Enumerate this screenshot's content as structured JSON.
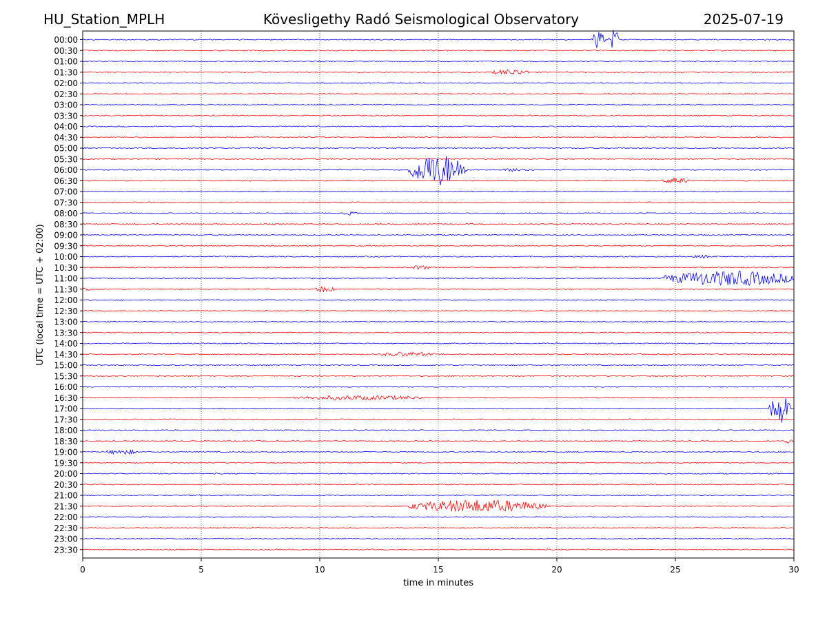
{
  "header": {
    "station": "HU_Station_MPLH",
    "observatory": "Kövesligethy Radó Seismological Observatory",
    "date": "2025-07-19"
  },
  "chart_data": {
    "type": "line",
    "title": "Kövesligethy Radó Seismological Observatory",
    "xlabel": "time in minutes",
    "ylabel": "UTC (local time = UTC + 02:00)",
    "xlim": [
      0,
      30
    ],
    "xticks": [
      "0",
      "5",
      "10",
      "15",
      "20",
      "25",
      "30"
    ],
    "grid": "vertical dotted at 5-minute intervals",
    "colors": [
      "#0000ff",
      "#ff0000"
    ],
    "rows": [
      "00:00",
      "00:30",
      "01:00",
      "01:30",
      "02:00",
      "02:30",
      "03:00",
      "03:30",
      "04:00",
      "04:30",
      "05:00",
      "05:30",
      "06:00",
      "06:30",
      "07:00",
      "07:30",
      "08:00",
      "08:30",
      "09:00",
      "09:30",
      "10:00",
      "10:30",
      "11:00",
      "11:30",
      "12:00",
      "12:30",
      "13:00",
      "13:30",
      "14:00",
      "14:30",
      "15:00",
      "15:30",
      "16:00",
      "16:30",
      "17:00",
      "17:30",
      "18:00",
      "18:30",
      "19:00",
      "19:30",
      "20:00",
      "20:30",
      "21:00",
      "21:30",
      "22:00",
      "22:30",
      "23:00",
      "23:30"
    ],
    "events": [
      {
        "row": "00:00",
        "start": 21.5,
        "end": 22.0,
        "amplitude": 1.5
      },
      {
        "row": "00:00",
        "start": 22.2,
        "end": 22.6,
        "amplitude": 1.8
      },
      {
        "row": "01:30",
        "start": 17.3,
        "end": 18.8,
        "amplitude": 0.4
      },
      {
        "row": "06:00",
        "start": 13.8,
        "end": 16.2,
        "amplitude": 2.6
      },
      {
        "row": "06:00",
        "start": 17.8,
        "end": 19.0,
        "amplitude": 0.25
      },
      {
        "row": "06:30",
        "start": 24.5,
        "end": 25.6,
        "amplitude": 0.4
      },
      {
        "row": "08:00",
        "start": 11.0,
        "end": 11.6,
        "amplitude": 0.25
      },
      {
        "row": "10:00",
        "start": 25.8,
        "end": 26.5,
        "amplitude": 0.2
      },
      {
        "row": "10:30",
        "start": 13.9,
        "end": 14.6,
        "amplitude": 0.3
      },
      {
        "row": "11:00",
        "start": 24.5,
        "end": 30.0,
        "amplitude": 1.2
      },
      {
        "row": "11:30",
        "start": 0.0,
        "end": 0.3,
        "amplitude": 0.4
      },
      {
        "row": "11:30",
        "start": 9.8,
        "end": 10.6,
        "amplitude": 0.45
      },
      {
        "row": "14:30",
        "start": 12.5,
        "end": 14.8,
        "amplitude": 0.3
      },
      {
        "row": "16:30",
        "start": 8.8,
        "end": 14.5,
        "amplitude": 0.3
      },
      {
        "row": "17:00",
        "start": 29.0,
        "end": 29.8,
        "amplitude": 2.6
      },
      {
        "row": "18:30",
        "start": 29.6,
        "end": 30.0,
        "amplitude": 0.3
      },
      {
        "row": "19:00",
        "start": 1.0,
        "end": 2.3,
        "amplitude": 0.35
      },
      {
        "row": "21:30",
        "start": 13.8,
        "end": 19.5,
        "amplitude": 1.0
      }
    ]
  }
}
